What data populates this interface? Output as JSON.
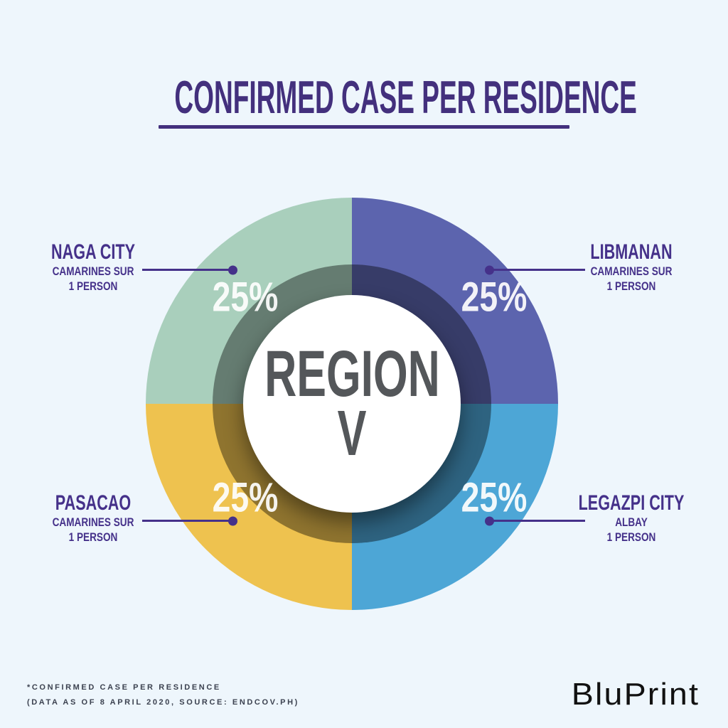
{
  "title": "CONFIRMED CASE PER RESIDENCE",
  "center": {
    "line1": "REGION",
    "line2": "V"
  },
  "chart_data": {
    "type": "pie",
    "subtype": "donut",
    "title": "CONFIRMED CASE PER RESIDENCE",
    "center_label": "REGION V",
    "units": "persons",
    "segments": [
      {
        "name": "NAGA CITY",
        "province": "CAMARINES SUR",
        "count": 1,
        "count_label": "1 PERSON",
        "value_pct": 25,
        "pct_label": "25%",
        "color": "#a9cfbc",
        "position": "top-left"
      },
      {
        "name": "LIBMANAN",
        "province": "CAMARINES SUR",
        "count": 1,
        "count_label": "1 PERSON",
        "value_pct": 25,
        "pct_label": "25%",
        "color": "#5c64ae",
        "position": "top-right"
      },
      {
        "name": "PASACAO",
        "province": "CAMARINES SUR",
        "count": 1,
        "count_label": "1 PERSON",
        "value_pct": 25,
        "pct_label": "25%",
        "color": "#eec24f",
        "position": "bottom-left"
      },
      {
        "name": "LEGAZPI CITY",
        "province": "ALBAY",
        "count": 1,
        "count_label": "1 PERSON",
        "value_pct": 25,
        "pct_label": "25%",
        "color": "#4da6d6",
        "position": "bottom-right"
      }
    ],
    "legend_position": "callouts",
    "grid": false
  },
  "footnote": {
    "line1": "*CONFIRMED CASE PER RESIDENCE",
    "line2": "(DATA AS OF 8 APRIL 2020, SOURCE: ENDCOV.PH)"
  },
  "logo_text": "BluPrint",
  "colors": {
    "background": "#eef6fc",
    "accent_purple": "#45318a",
    "title_purple": "#43307d",
    "center_text": "#54575a",
    "footnote_text": "#3c4250",
    "logo_text": "#111111",
    "percent_text": "#ffffff"
  }
}
